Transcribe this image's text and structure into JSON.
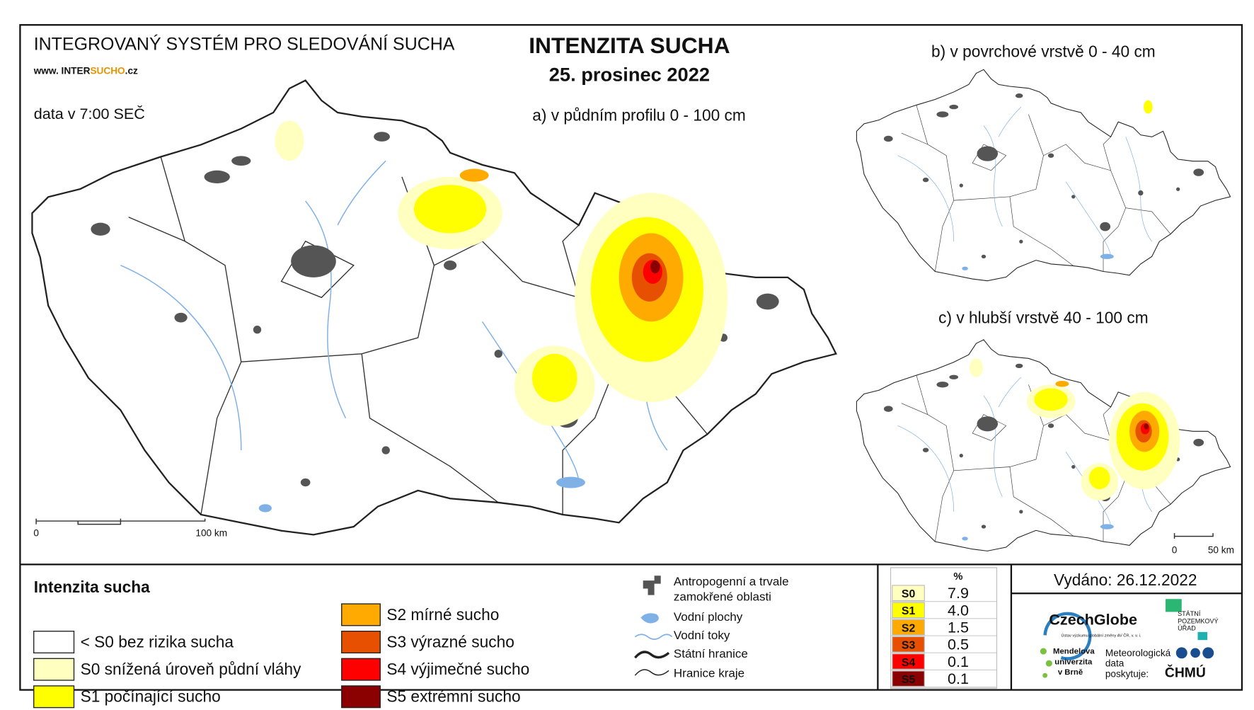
{
  "header": {
    "system": "INTEGROVANÝ SYSTÉM PRO SLEDOVÁNÍ SUCHA",
    "url_prefix": "www. INTER",
    "url_highlight": "SUCHO",
    "url_suffix": ".cz",
    "data_time": "data v 7:00 SEČ",
    "title": "INTENZITA SUCHA",
    "date": "25. prosinec 2022"
  },
  "maps": [
    {
      "label": "a) v půdním profilu 0 - 100 cm",
      "scale_labels": [
        "0",
        "100 km"
      ]
    },
    {
      "label": "b) v povrchové vrstvě 0 - 40 cm"
    },
    {
      "label": "c) v hlubší vrstvě 40 - 100 cm",
      "scale_labels": [
        "0",
        "50 km"
      ]
    }
  ],
  "legend": {
    "title": "Intenzita sucha",
    "items": [
      {
        "color": "#ffffff",
        "label": "< S0 bez rizika sucha"
      },
      {
        "color": "#ffffc0",
        "label": "S0 snížená úroveň půdní vláhy"
      },
      {
        "color": "#ffff00",
        "label": "S1 počínající sucho"
      },
      {
        "color": "#ffaa00",
        "label": "S2 mírné sucho"
      },
      {
        "color": "#e65000",
        "label": "S3 výrazné sucho"
      },
      {
        "color": "#ff0000",
        "label": "S4 výjimečné sucho"
      },
      {
        "color": "#8b0000",
        "label": "S5 extrémní sucho"
      }
    ]
  },
  "symbols": {
    "anthropogenic": [
      "Antropogenní a trvale",
      "zamokřené oblasti"
    ],
    "water_bodies": "Vodní plochy",
    "streams": "Vodní toky",
    "state_border": "Státní hranice",
    "region_border": "Hranice kraje"
  },
  "stats": {
    "header": "%",
    "rows": [
      {
        "class": "S0",
        "value": "7.9",
        "color": "#ffffc0"
      },
      {
        "class": "S1",
        "value": "4.0",
        "color": "#ffff00"
      },
      {
        "class": "S2",
        "value": "1.5",
        "color": "#ffaa00"
      },
      {
        "class": "S3",
        "value": "0.5",
        "color": "#e65000"
      },
      {
        "class": "S4",
        "value": "0.1",
        "color": "#ff0000"
      },
      {
        "class": "S5",
        "value": "0.1",
        "color": "#8b0000"
      }
    ]
  },
  "issued": "Vydáno: 26.12.2022",
  "logos": {
    "czechglobe": "CzechGlobe",
    "czechglobe_sub": "Ústav výzkumu globální změny AV ČR, v. v. i.",
    "spu": [
      "STÁTNÍ",
      "POZEMKOVÝ",
      "ÚŘAD"
    ],
    "mendelu": [
      "Mendelova",
      "univerzita",
      "v Brně"
    ],
    "meteo": [
      "Meteorologická",
      "data",
      "poskytuje:"
    ],
    "chmu": "ČHMÚ"
  }
}
